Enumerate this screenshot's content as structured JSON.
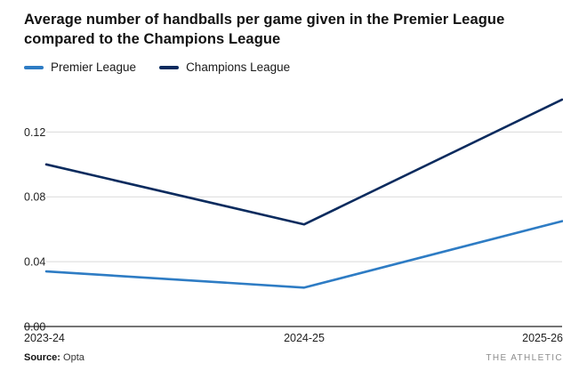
{
  "header": {
    "title": "Average number of handballs per game given in the Premier League compared to the Champions League"
  },
  "legend": [
    {
      "label": "Premier League",
      "color": "#2e7cc4"
    },
    {
      "label": "Champions League",
      "color": "#0b2b5e"
    }
  ],
  "footer": {
    "source_label": "Source:",
    "source_value": "Opta",
    "brand": "THE ATHLETIC"
  },
  "chart_data": {
    "type": "line",
    "categories": [
      "2023-24",
      "2024-25",
      "2025-26"
    ],
    "series": [
      {
        "name": "Premier League",
        "color": "#2e7cc4",
        "values": [
          0.034,
          0.024,
          0.065
        ]
      },
      {
        "name": "Champions League",
        "color": "#0b2b5e",
        "values": [
          0.1,
          0.063,
          0.14
        ]
      }
    ],
    "yticks": [
      0.0,
      0.04,
      0.08,
      0.12
    ],
    "ytick_labels": [
      "0.00",
      "0.04",
      "0.08",
      "0.12"
    ],
    "ylim": [
      0,
      0.146
    ],
    "grid": true,
    "legend_position": "top",
    "title": "Average number of handballs per game given in the Premier League compared to the Champions League",
    "xlabel": "",
    "ylabel": ""
  },
  "colors": {
    "gridline": "#d9d9d9",
    "axis": "#222222",
    "tick_text": "#222222"
  }
}
